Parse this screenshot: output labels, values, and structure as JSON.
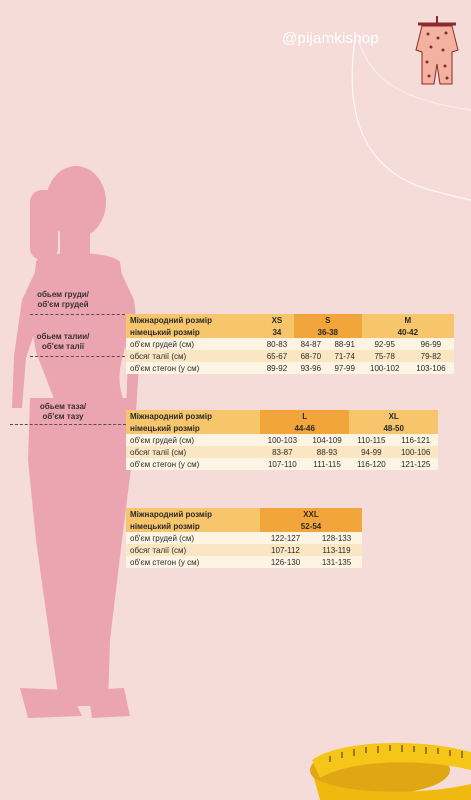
{
  "brand": {
    "handle": "@pijamkishop"
  },
  "body_labels": {
    "chest": [
      "обьем груди/",
      "об'єм грудей"
    ],
    "waist": [
      "обьем талии/",
      "об'єм талії"
    ],
    "hips": [
      "обьем таза/",
      "об'єм тазу"
    ]
  },
  "tables": [
    {
      "intl_label": "Міжнародний розмір",
      "de_label": "німецький розмір",
      "intl": [
        "XS",
        "S",
        "M"
      ],
      "de": [
        "34",
        "36-38",
        "40-42"
      ],
      "rows": [
        {
          "label": "об'єм грудей (см)",
          "values": [
            "80-83",
            "84-87",
            "88-91",
            "92-95",
            "96-99"
          ]
        },
        {
          "label": "обсяг талії (см)",
          "values": [
            "65-67",
            "68-70",
            "71-74",
            "75-78",
            "79-82"
          ]
        },
        {
          "label": "об'єм стегон (у см)",
          "values": [
            "89-92",
            "93-96",
            "97-99",
            "100-102",
            "103-106"
          ]
        }
      ]
    },
    {
      "intl_label": "Міжнародний розмір",
      "de_label": "німецький розмір",
      "intl": [
        "L",
        "XL"
      ],
      "de": [
        "44-46",
        "48-50"
      ],
      "rows": [
        {
          "label": "об'єм грудей (см)",
          "values": [
            "100-103",
            "104-109",
            "110-115",
            "116-121"
          ]
        },
        {
          "label": "обсяг талії (см)",
          "values": [
            "83-87",
            "88-93",
            "94-99",
            "100-106"
          ]
        },
        {
          "label": "об'єм стегон (у см)",
          "values": [
            "107-110",
            "111-115",
            "116-120",
            "121-125"
          ]
        }
      ]
    },
    {
      "intl_label": "Міжнародний розмір",
      "de_label": "німецький розмір",
      "intl": [
        "XXL"
      ],
      "de": [
        "52-54"
      ],
      "rows": [
        {
          "label": "об'єм грудей (см)",
          "values": [
            "122-127",
            "128-133"
          ]
        },
        {
          "label": "обсяг талії (см)",
          "values": [
            "107-112",
            "113-119"
          ]
        },
        {
          "label": "об'єм стегон (у см)",
          "values": [
            "126-130",
            "131-135"
          ]
        }
      ]
    }
  ],
  "colors": {
    "background": "#f6dcd8",
    "silhouette": "#eba5b1",
    "header": "#f7c56b",
    "header_highlight": "#f2a53a",
    "row_light": "#fdf4e4",
    "row_dark": "#fbe6c4"
  }
}
